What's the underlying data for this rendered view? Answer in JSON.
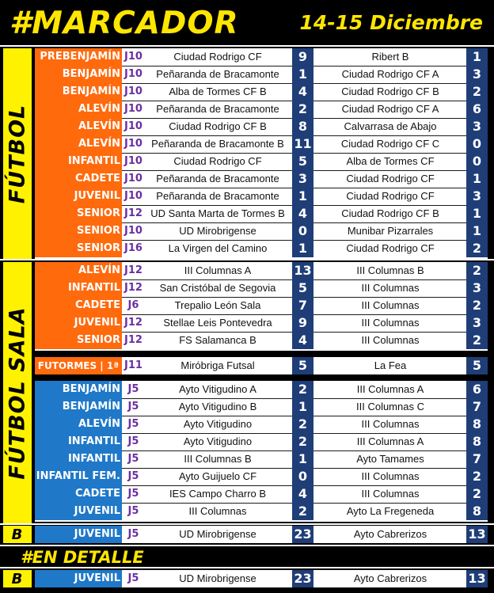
{
  "header": {
    "title": "#MARCADOR",
    "date": "14-15 Diciembre"
  },
  "side_labels": {
    "futbol": "FÚTBOL",
    "futbol_sala": "FÚTBOL SALA",
    "b": "B",
    "b2": "B"
  },
  "detalle_title": "#EN DETALLE",
  "futbol": [
    {
      "cat": "PREBENJAMÍN",
      "j": "J10",
      "home": "Ciudad Rodrigo CF",
      "sh": "9",
      "away": "Ribert B",
      "sa": "1"
    },
    {
      "cat": "BENJAMÍN",
      "j": "J10",
      "home": "Peñaranda de Bracamonte",
      "sh": "1",
      "away": "Ciudad Rodrigo CF A",
      "sa": "3"
    },
    {
      "cat": "BENJAMÍN",
      "j": "J10",
      "home": "Alba de Tormes CF B",
      "sh": "4",
      "away": "Ciudad Rodrigo CF B",
      "sa": "2"
    },
    {
      "cat": "ALEVÍN",
      "j": "J10",
      "home": "Peñaranda de Bracamonte",
      "sh": "2",
      "away": "Ciudad Rodrigo CF A",
      "sa": "6"
    },
    {
      "cat": "ALEVÍN",
      "j": "J10",
      "home": "Ciudad Rodrigo CF B",
      "sh": "8",
      "away": "Calvarrasa de Abajo",
      "sa": "3"
    },
    {
      "cat": "ALEVÍN",
      "j": "J10",
      "home": "Peñaranda de Bracamonte B",
      "sh": "11",
      "away": "Ciudad Rodrigo CF C",
      "sa": "0"
    },
    {
      "cat": "INFANTIL",
      "j": "J10",
      "home": "Ciudad Rodrigo CF",
      "sh": "5",
      "away": "Alba de Tormes CF",
      "sa": "0"
    },
    {
      "cat": "CADETE",
      "j": "J10",
      "home": "Peñaranda de Bracamonte",
      "sh": "3",
      "away": "Ciudad Rodrigo CF",
      "sa": "1"
    },
    {
      "cat": "JUVENIL",
      "j": "J10",
      "home": "Peñaranda de Bracamonte",
      "sh": "1",
      "away": "Ciudad Rodrigo CF",
      "sa": "3"
    },
    {
      "cat": "SENIOR",
      "j": "J12",
      "home": "UD Santa Marta de Tormes B",
      "sh": "4",
      "away": "Ciudad Rodrigo CF B",
      "sa": "1"
    },
    {
      "cat": "SENIOR",
      "j": "J10",
      "home": "UD Mirobrigense",
      "sh": "0",
      "away": "Munibar Pizarrales",
      "sa": "1"
    },
    {
      "cat": "SENIOR",
      "j": "J16",
      "home": "La Virgen del Camino",
      "sh": "1",
      "away": "Ciudad Rodrigo CF",
      "sa": "2"
    }
  ],
  "sala_orange": [
    {
      "cat": "ALEVÍN",
      "j": "J12",
      "home": "III Columnas A",
      "sh": "13",
      "away": "III Columnas B",
      "sa": "2"
    },
    {
      "cat": "INFANTIL",
      "j": "J12",
      "home": "San Cristóbal de Segovia",
      "sh": "5",
      "away": "III Columnas",
      "sa": "3"
    },
    {
      "cat": "CADETE",
      "j": "J6",
      "home": "Trepalio León Sala",
      "sh": "7",
      "away": "III Columnas",
      "sa": "2"
    },
    {
      "cat": "JUVENIL",
      "j": "J12",
      "home": "Stellae Leis Pontevedra",
      "sh": "9",
      "away": "III Columnas",
      "sa": "3"
    },
    {
      "cat": "SENIOR",
      "j": "J12",
      "home": "FS Salamanca B",
      "sh": "4",
      "away": "III Columnas",
      "sa": "2"
    }
  ],
  "futormes": {
    "cat": "FUTORMES | 1ª",
    "j": "J11",
    "home": "Miróbriga Futsal",
    "sh": "5",
    "away": "La Fea",
    "sa": "5"
  },
  "sala_blue": [
    {
      "cat": "BENJAMÍN",
      "j": "J5",
      "home": "Ayto Vitigudino A",
      "sh": "2",
      "away": "III Columnas A",
      "sa": "6"
    },
    {
      "cat": "BENJAMÍN",
      "j": "J5",
      "home": "Ayto Vitigudino B",
      "sh": "1",
      "away": "III Columnas C",
      "sa": "7"
    },
    {
      "cat": "ALEVÍN",
      "j": "J5",
      "home": "Ayto Vitigudino",
      "sh": "2",
      "away": "III Columnas",
      "sa": "8"
    },
    {
      "cat": "INFANTIL",
      "j": "J5",
      "home": "Ayto Vitigudino",
      "sh": "2",
      "away": "III Columnas A",
      "sa": "8"
    },
    {
      "cat": "INFANTIL",
      "j": "J5",
      "home": "III Columnas B",
      "sh": "1",
      "away": "Ayto Tamames",
      "sa": "7"
    },
    {
      "cat": "INFANTIL FEM.",
      "j": "J5",
      "home": "Ayto Guijuelo CF",
      "sh": "0",
      "away": "III Columnas",
      "sa": "2"
    },
    {
      "cat": "CADETE",
      "j": "J5",
      "home": "IES Campo Charro B",
      "sh": "4",
      "away": "III Columnas",
      "sa": "2"
    },
    {
      "cat": "JUVENIL",
      "j": "J5",
      "home": "III Columnas",
      "sh": "2",
      "away": "Ayto La Fregeneda",
      "sa": "8"
    }
  ],
  "b_section": [
    {
      "cat": "JUVENIL",
      "j": "J5",
      "home": "UD Mirobrigense",
      "sh": "23",
      "away": "Ayto Cabrerizos",
      "sa": "13"
    }
  ],
  "detalle_rows": [
    {
      "cat": "JUVENIL",
      "j": "J5",
      "home": "UD Mirobrigense",
      "sh": "23",
      "away": "Ayto Cabrerizos",
      "sa": "13"
    }
  ]
}
